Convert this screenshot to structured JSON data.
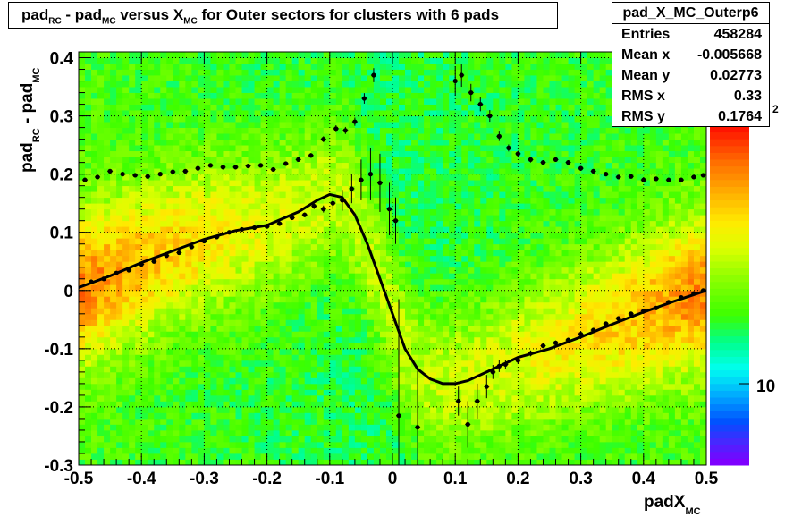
{
  "title": {
    "a": "pad",
    "a_sub": "RC",
    "b": " - pad",
    "b_sub": "MC",
    "c": " versus X",
    "c_sub": "MC",
    "d": " for Outer sectors for clusters with 6 pads"
  },
  "stats": {
    "name": "pad_X_MC_Outerp6",
    "rows": [
      {
        "label": "Entries",
        "value": "458284"
      },
      {
        "label": "Mean x",
        "value": "-0.005668"
      },
      {
        "label": "Mean y",
        "value": "0.02773"
      },
      {
        "label": "RMS x",
        "value": "0.33"
      },
      {
        "label": "RMS y",
        "value": "0.1764"
      }
    ]
  },
  "palette_labels": {
    "low": "10",
    "high_fragment": "2"
  },
  "colors": {
    "frame": "#000000",
    "grid": "#000000",
    "markers": "#000000",
    "fit_curve": "#000000"
  },
  "chart_data": {
    "type": "heatmap",
    "xlabel": "padX",
    "xlabel_sub": "MC",
    "ylabel": {
      "a": "pad",
      "a_sub": "RC",
      "b": " - pad",
      "b_sub": "MC"
    },
    "xlim": [
      -0.5,
      0.5
    ],
    "ylim": [
      -0.3,
      0.41
    ],
    "xticks": [
      "-0.5",
      "-0.4",
      "-0.3",
      "-0.2",
      "-0.1",
      "0",
      "0.1",
      "0.2",
      "0.3",
      "0.4",
      "0.5"
    ],
    "xtick_values": [
      -0.5,
      -0.4,
      -0.3,
      -0.2,
      -0.1,
      0,
      0.1,
      0.2,
      0.3,
      0.4,
      0.5
    ],
    "yticks": [
      "-0.3",
      "-0.2",
      "-0.1",
      "0",
      "0.1",
      "0.2",
      "0.3",
      "0.4"
    ],
    "ytick_values": [
      -0.3,
      -0.2,
      -0.1,
      0,
      0.1,
      0.2,
      0.3,
      0.4
    ],
    "grid": true,
    "colz_palette": true,
    "profile_points": [
      {
        "x": -0.49,
        "y": 0.19,
        "e": 0.003
      },
      {
        "x": -0.47,
        "y": 0.195,
        "e": 0.003
      },
      {
        "x": -0.45,
        "y": 0.205,
        "e": 0.003
      },
      {
        "x": -0.43,
        "y": 0.2,
        "e": 0.003
      },
      {
        "x": -0.41,
        "y": 0.198,
        "e": 0.003
      },
      {
        "x": -0.39,
        "y": 0.196,
        "e": 0.003
      },
      {
        "x": -0.37,
        "y": 0.2,
        "e": 0.003
      },
      {
        "x": -0.35,
        "y": 0.204,
        "e": 0.003
      },
      {
        "x": -0.33,
        "y": 0.205,
        "e": 0.003
      },
      {
        "x": -0.31,
        "y": 0.21,
        "e": 0.003
      },
      {
        "x": -0.29,
        "y": 0.215,
        "e": 0.003
      },
      {
        "x": -0.27,
        "y": 0.212,
        "e": 0.003
      },
      {
        "x": -0.25,
        "y": 0.212,
        "e": 0.003
      },
      {
        "x": -0.23,
        "y": 0.214,
        "e": 0.003
      },
      {
        "x": -0.21,
        "y": 0.215,
        "e": 0.003
      },
      {
        "x": -0.19,
        "y": 0.208,
        "e": 0.003
      },
      {
        "x": -0.17,
        "y": 0.218,
        "e": 0.003
      },
      {
        "x": -0.15,
        "y": 0.225,
        "e": 0.004
      },
      {
        "x": -0.13,
        "y": 0.232,
        "e": 0.004
      },
      {
        "x": -0.11,
        "y": 0.26,
        "e": 0.005
      },
      {
        "x": -0.09,
        "y": 0.278,
        "e": 0.006
      },
      {
        "x": -0.075,
        "y": 0.275,
        "e": 0.006
      },
      {
        "x": -0.06,
        "y": 0.29,
        "e": 0.007
      },
      {
        "x": -0.045,
        "y": 0.33,
        "e": 0.009
      },
      {
        "x": -0.03,
        "y": 0.37,
        "e": 0.012
      },
      {
        "x": -0.11,
        "y": 0.14,
        "e": 0.006
      },
      {
        "x": -0.095,
        "y": 0.15,
        "e": 0.01
      },
      {
        "x": -0.08,
        "y": 0.155,
        "e": 0.018
      },
      {
        "x": -0.065,
        "y": 0.175,
        "e": 0.025
      },
      {
        "x": -0.05,
        "y": 0.19,
        "e": 0.035
      },
      {
        "x": -0.035,
        "y": 0.2,
        "e": 0.045
      },
      {
        "x": -0.02,
        "y": 0.185,
        "e": 0.05
      },
      {
        "x": -0.005,
        "y": 0.14,
        "e": 0.045
      },
      {
        "x": 0.005,
        "y": 0.12,
        "e": 0.04
      },
      {
        "x": 0.01,
        "y": -0.215,
        "e": 0.2
      },
      {
        "x": 0.04,
        "y": -0.235,
        "e": 0.1
      },
      {
        "x": 0.1,
        "y": 0.36,
        "e": 0.025
      },
      {
        "x": 0.11,
        "y": 0.37,
        "e": 0.02
      },
      {
        "x": 0.125,
        "y": 0.34,
        "e": 0.015
      },
      {
        "x": 0.14,
        "y": 0.32,
        "e": 0.012
      },
      {
        "x": 0.155,
        "y": 0.3,
        "e": 0.01
      },
      {
        "x": 0.17,
        "y": 0.265,
        "e": 0.008
      },
      {
        "x": 0.185,
        "y": 0.245,
        "e": 0.006
      },
      {
        "x": 0.2,
        "y": 0.235,
        "e": 0.005
      },
      {
        "x": 0.22,
        "y": 0.225,
        "e": 0.005
      },
      {
        "x": 0.24,
        "y": 0.22,
        "e": 0.004
      },
      {
        "x": 0.26,
        "y": 0.225,
        "e": 0.004
      },
      {
        "x": 0.28,
        "y": 0.22,
        "e": 0.004
      },
      {
        "x": 0.3,
        "y": 0.21,
        "e": 0.004
      },
      {
        "x": 0.32,
        "y": 0.205,
        "e": 0.003
      },
      {
        "x": 0.34,
        "y": 0.2,
        "e": 0.003
      },
      {
        "x": 0.36,
        "y": 0.195,
        "e": 0.003
      },
      {
        "x": 0.38,
        "y": 0.196,
        "e": 0.003
      },
      {
        "x": 0.4,
        "y": 0.19,
        "e": 0.003
      },
      {
        "x": 0.42,
        "y": 0.192,
        "e": 0.003
      },
      {
        "x": 0.44,
        "y": 0.19,
        "e": 0.003
      },
      {
        "x": 0.46,
        "y": 0.19,
        "e": 0.003
      },
      {
        "x": 0.48,
        "y": 0.195,
        "e": 0.003
      },
      {
        "x": 0.495,
        "y": 0.198,
        "e": 0.003
      },
      {
        "x": 0.105,
        "y": -0.19,
        "e": 0.025
      },
      {
        "x": 0.12,
        "y": -0.23,
        "e": 0.04
      },
      {
        "x": 0.135,
        "y": -0.19,
        "e": 0.03
      },
      {
        "x": 0.15,
        "y": -0.165,
        "e": 0.02
      },
      {
        "x": 0.16,
        "y": -0.14,
        "e": 0.012
      },
      {
        "x": 0.17,
        "y": -0.13,
        "e": 0.01
      },
      {
        "x": 0.18,
        "y": -0.127,
        "e": 0.008
      },
      {
        "x": 0.2,
        "y": -0.12,
        "e": 0.006
      },
      {
        "x": 0.22,
        "y": -0.108,
        "e": 0.005
      },
      {
        "x": 0.24,
        "y": -0.095,
        "e": 0.004
      },
      {
        "x": 0.26,
        "y": -0.09,
        "e": 0.004
      },
      {
        "x": 0.28,
        "y": -0.085,
        "e": 0.004
      },
      {
        "x": 0.3,
        "y": -0.075,
        "e": 0.004
      },
      {
        "x": 0.32,
        "y": -0.068,
        "e": 0.003
      },
      {
        "x": 0.34,
        "y": -0.057,
        "e": 0.003
      },
      {
        "x": 0.36,
        "y": -0.048,
        "e": 0.003
      },
      {
        "x": 0.38,
        "y": -0.04,
        "e": 0.003
      },
      {
        "x": 0.4,
        "y": -0.035,
        "e": 0.003
      },
      {
        "x": 0.42,
        "y": -0.03,
        "e": 0.003
      },
      {
        "x": 0.44,
        "y": -0.02,
        "e": 0.003
      },
      {
        "x": 0.46,
        "y": -0.012,
        "e": 0.003
      },
      {
        "x": 0.48,
        "y": -0.005,
        "e": 0.003
      },
      {
        "x": 0.495,
        "y": 0.0,
        "e": 0.003
      },
      {
        "x": -0.48,
        "y": 0.015,
        "e": 0.003
      },
      {
        "x": -0.46,
        "y": 0.02,
        "e": 0.003
      },
      {
        "x": -0.44,
        "y": 0.03,
        "e": 0.003
      },
      {
        "x": -0.42,
        "y": 0.035,
        "e": 0.003
      },
      {
        "x": -0.4,
        "y": 0.045,
        "e": 0.003
      },
      {
        "x": -0.38,
        "y": 0.05,
        "e": 0.003
      },
      {
        "x": -0.36,
        "y": 0.06,
        "e": 0.003
      },
      {
        "x": -0.34,
        "y": 0.065,
        "e": 0.003
      },
      {
        "x": -0.32,
        "y": 0.075,
        "e": 0.003
      },
      {
        "x": -0.3,
        "y": 0.085,
        "e": 0.003
      },
      {
        "x": -0.28,
        "y": 0.092,
        "e": 0.003
      },
      {
        "x": -0.26,
        "y": 0.1,
        "e": 0.003
      },
      {
        "x": -0.24,
        "y": 0.105,
        "e": 0.003
      },
      {
        "x": -0.22,
        "y": 0.108,
        "e": 0.003
      },
      {
        "x": -0.2,
        "y": 0.11,
        "e": 0.003
      },
      {
        "x": -0.18,
        "y": 0.115,
        "e": 0.004
      },
      {
        "x": -0.16,
        "y": 0.125,
        "e": 0.004
      },
      {
        "x": -0.14,
        "y": 0.13,
        "e": 0.004
      },
      {
        "x": -0.125,
        "y": 0.145,
        "e": 0.005
      }
    ],
    "fit_curve": [
      [
        -0.5,
        0.005
      ],
      [
        -0.45,
        0.025
      ],
      [
        -0.4,
        0.048
      ],
      [
        -0.35,
        0.068
      ],
      [
        -0.3,
        0.088
      ],
      [
        -0.25,
        0.103
      ],
      [
        -0.2,
        0.112
      ],
      [
        -0.15,
        0.135
      ],
      [
        -0.12,
        0.155
      ],
      [
        -0.1,
        0.165
      ],
      [
        -0.08,
        0.16
      ],
      [
        -0.06,
        0.13
      ],
      [
        -0.04,
        0.08
      ],
      [
        -0.02,
        0.02
      ],
      [
        0.0,
        -0.04
      ],
      [
        0.02,
        -0.1
      ],
      [
        0.04,
        -0.135
      ],
      [
        0.06,
        -0.152
      ],
      [
        0.08,
        -0.16
      ],
      [
        0.1,
        -0.16
      ],
      [
        0.12,
        -0.155
      ],
      [
        0.15,
        -0.14
      ],
      [
        0.2,
        -0.115
      ],
      [
        0.25,
        -0.1
      ],
      [
        0.3,
        -0.08
      ],
      [
        0.35,
        -0.058
      ],
      [
        0.4,
        -0.037
      ],
      [
        0.45,
        -0.018
      ],
      [
        0.5,
        0.0
      ]
    ]
  }
}
